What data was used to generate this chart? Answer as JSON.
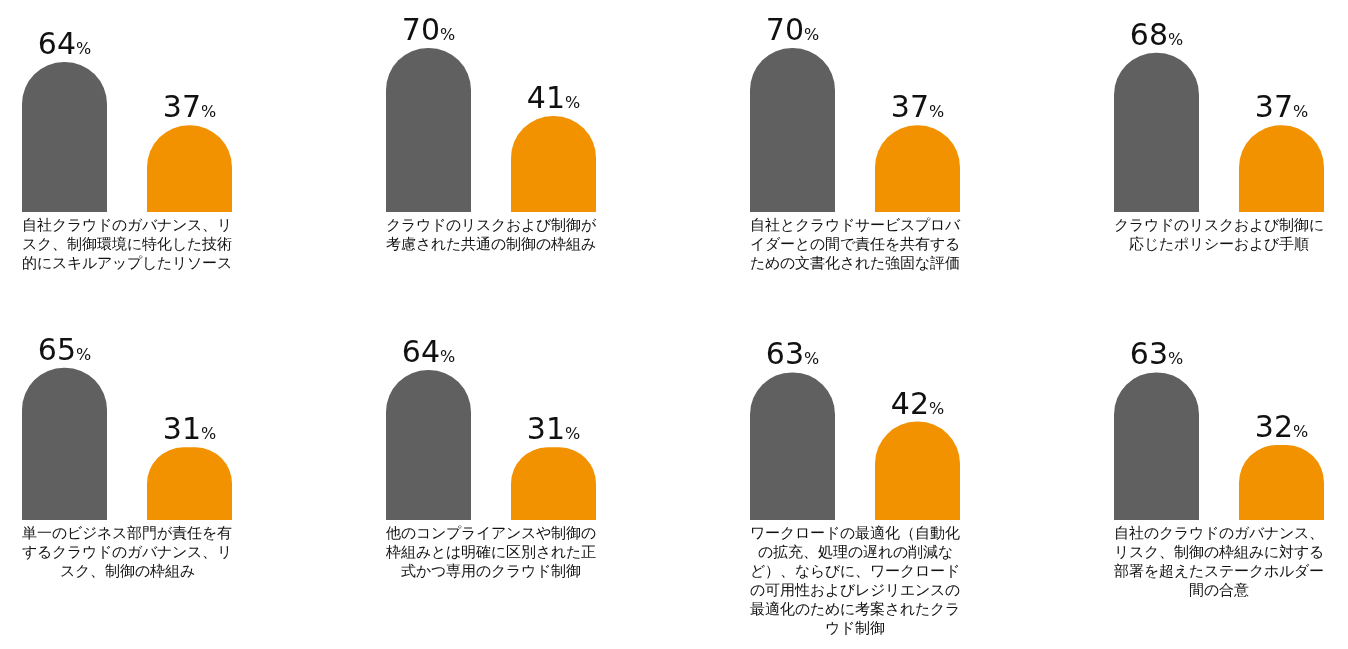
{
  "chart_data": [
    {
      "type": "bar",
      "xlabel": "自社クラウドのガバナンス、リスク、制御環境に特化した技術的にスキルアップしたリソース",
      "categories": [
        null,
        null
      ],
      "values": [
        64,
        37
      ],
      "colors": [
        "#606060",
        "#f39200"
      ],
      "value_labels": [
        "64%",
        "37%"
      ]
    },
    {
      "type": "bar",
      "xlabel": "クラウドのリスクおよび制御が考慮された共通の制御の枠組み",
      "categories": [
        null,
        null
      ],
      "values": [
        70,
        41
      ],
      "colors": [
        "#606060",
        "#f39200"
      ],
      "value_labels": [
        "70%",
        "41%"
      ]
    },
    {
      "type": "bar",
      "xlabel": "自社とクラウドサービスプロバイダーとの間で責任を共有するための文書化された強固な評価",
      "categories": [
        null,
        null
      ],
      "values": [
        70,
        37
      ],
      "colors": [
        "#606060",
        "#f39200"
      ],
      "value_labels": [
        "70%",
        "37%"
      ]
    },
    {
      "type": "bar",
      "xlabel": "クラウドのリスクおよび制御に応じたポリシーおよび手順",
      "categories": [
        null,
        null
      ],
      "values": [
        68,
        37
      ],
      "colors": [
        "#606060",
        "#f39200"
      ],
      "value_labels": [
        "68%",
        "37%"
      ]
    },
    {
      "type": "bar",
      "xlabel": "単一のビジネス部門が責任を有するクラウドのガバナンス、リスク、制御の枠組み",
      "categories": [
        null,
        null
      ],
      "values": [
        65,
        31
      ],
      "colors": [
        "#606060",
        "#f39200"
      ],
      "value_labels": [
        "65%",
        "31%"
      ]
    },
    {
      "type": "bar",
      "xlabel": "他のコンプライアンスや制御の枠組みとは明確に区別された正式かつ専用のクラウド制御",
      "categories": [
        null,
        null
      ],
      "values": [
        64,
        31
      ],
      "colors": [
        "#606060",
        "#f39200"
      ],
      "value_labels": [
        "64%",
        "31%"
      ]
    },
    {
      "type": "bar",
      "xlabel": "ワークロードの最適化（自動化の拡充、処理の遅れの削減など）、ならびに、ワークロードの可用性およびレジリエンスの最適化のために考案されたクラウド制御",
      "categories": [
        null,
        null
      ],
      "values": [
        63,
        42
      ],
      "colors": [
        "#606060",
        "#f39200"
      ],
      "value_labels": [
        "63%",
        "42%"
      ]
    },
    {
      "type": "bar",
      "xlabel": "自社のクラウドのガバナンス、リスク、制御の枠組みに対する部署を超えたステークホルダー間の合意",
      "categories": [
        null,
        null
      ],
      "values": [
        63,
        32
      ],
      "colors": [
        "#606060",
        "#f39200"
      ],
      "value_labels": [
        "63%",
        "32%"
      ]
    }
  ]
}
